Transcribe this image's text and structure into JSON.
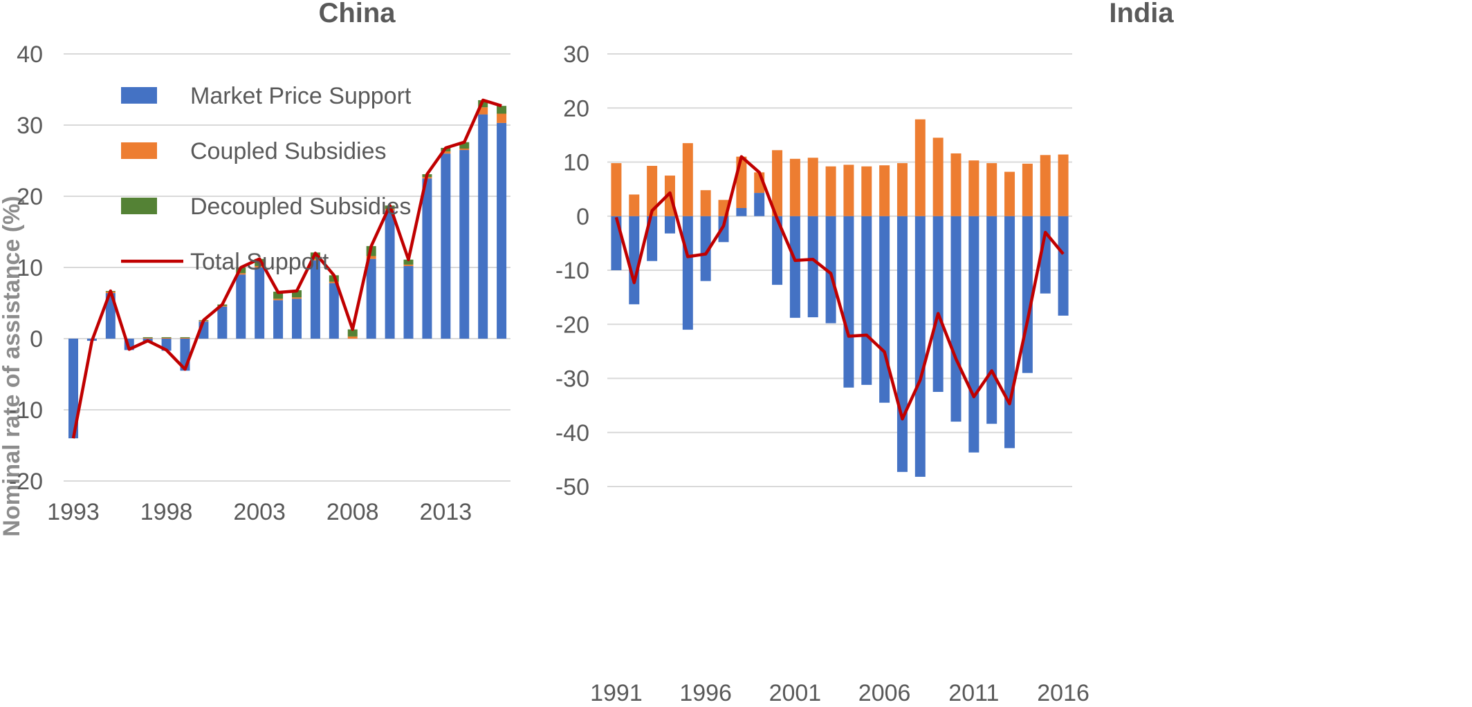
{
  "colors": {
    "market": "#4472C4",
    "coupled": "#ED7D31",
    "decoupled": "#548235",
    "total": "#C00000"
  },
  "legend": [
    {
      "key": "market",
      "label": "Market Price Support",
      "kind": "box"
    },
    {
      "key": "coupled",
      "label": "Coupled Subsidies",
      "kind": "box"
    },
    {
      "key": "decoupled",
      "label": "Decoupled Subsidies",
      "kind": "box"
    },
    {
      "key": "total",
      "label": "Total Support",
      "kind": "line"
    }
  ],
  "chart_data": [
    {
      "type": "bar",
      "stacked": true,
      "title": "China",
      "ylabel": "Nominal rate of assistance (%)",
      "ylim": [
        -20,
        40
      ],
      "yticks": [
        -20,
        -10,
        0,
        10,
        20,
        30,
        40
      ],
      "grid": true,
      "legend_position": "top-left",
      "x": [
        1993,
        1994,
        1995,
        1996,
        1997,
        1998,
        1999,
        2000,
        2001,
        2002,
        2003,
        2004,
        2005,
        2006,
        2007,
        2008,
        2009,
        2010,
        2011,
        2012,
        2013,
        2014,
        2015,
        2016
      ],
      "xtick_labels": [
        "1993",
        "1998",
        "2003",
        "2008",
        "2013"
      ],
      "series": [
        {
          "name": "Market Price Support",
          "key": "market",
          "values": [
            -14.0,
            -0.3,
            6.4,
            -1.6,
            -0.4,
            -1.7,
            -4.5,
            2.4,
            4.5,
            9.0,
            10.0,
            5.4,
            5.6,
            11.0,
            7.8,
            0.0,
            11.2,
            18.0,
            10.2,
            22.5,
            26.0,
            26.5,
            31.5,
            30.3
          ]
        },
        {
          "name": "Coupled Subsidies",
          "key": "coupled",
          "values": [
            0.0,
            0.0,
            0.2,
            0.0,
            0.1,
            0.1,
            0.1,
            0.1,
            0.1,
            0.2,
            0.2,
            0.2,
            0.2,
            0.2,
            0.2,
            0.3,
            0.4,
            0.2,
            0.2,
            0.2,
            0.3,
            0.2,
            1.0,
            1.3
          ]
        },
        {
          "name": "Decoupled Subsidies",
          "key": "decoupled",
          "values": [
            0.0,
            0.0,
            0.1,
            0.0,
            0.1,
            0.1,
            0.1,
            0.1,
            0.2,
            0.8,
            1.0,
            1.0,
            1.0,
            0.9,
            0.9,
            1.0,
            1.4,
            0.5,
            0.7,
            0.4,
            0.5,
            0.9,
            1.0,
            1.1
          ]
        }
      ],
      "total": {
        "name": "Total Support",
        "key": "total",
        "values": [
          -14.0,
          -0.3,
          6.7,
          -1.5,
          -0.3,
          -1.6,
          -4.3,
          2.6,
          4.8,
          10.0,
          11.2,
          6.5,
          6.7,
          12.0,
          8.9,
          1.3,
          13.0,
          18.7,
          11.1,
          23.1,
          26.8,
          27.6,
          33.5,
          32.7
        ]
      }
    },
    {
      "type": "bar",
      "stacked": true,
      "title": "India",
      "ylabel": "",
      "ylim": [
        -50,
        30
      ],
      "yticks": [
        -50,
        -40,
        -30,
        -20,
        -10,
        0,
        10,
        20,
        30
      ],
      "grid": true,
      "x": [
        1991,
        1992,
        1993,
        1994,
        1995,
        1996,
        1997,
        1998,
        1999,
        2000,
        2001,
        2002,
        2003,
        2004,
        2005,
        2006,
        2007,
        2008,
        2009,
        2010,
        2011,
        2012,
        2013,
        2014,
        2015,
        2016
      ],
      "xtick_labels": [
        "1991",
        "1996",
        "2001",
        "2006",
        "2011",
        "2016"
      ],
      "series": [
        {
          "name": "Market Price Support",
          "key": "market",
          "values": [
            -10.0,
            -16.3,
            -8.3,
            -3.2,
            -21.0,
            -12.0,
            -4.8,
            1.5,
            4.3,
            -12.7,
            -18.8,
            -18.7,
            -19.8,
            -31.7,
            -31.2,
            -34.5,
            -47.3,
            -48.2,
            -32.5,
            -38.0,
            -43.7,
            -38.4,
            -42.9,
            -29.0,
            -14.3,
            -18.4
          ]
        },
        {
          "name": "Coupled Subsidies",
          "key": "coupled",
          "values": [
            9.8,
            4.0,
            9.3,
            7.5,
            13.5,
            4.8,
            3.0,
            9.5,
            3.8,
            12.2,
            10.6,
            10.8,
            9.2,
            9.5,
            9.2,
            9.4,
            9.8,
            17.9,
            14.5,
            11.6,
            10.3,
            9.8,
            8.2,
            9.7,
            11.3,
            11.4
          ]
        }
      ],
      "total": {
        "name": "Total Support",
        "key": "total",
        "values": [
          -0.2,
          -12.3,
          1.0,
          4.3,
          -7.5,
          -7.0,
          -1.8,
          11.0,
          8.1,
          -0.5,
          -8.2,
          -8.0,
          -10.6,
          -22.2,
          -22.0,
          -25.1,
          -37.5,
          -30.3,
          -18.0,
          -26.4,
          -33.4,
          -28.6,
          -34.7,
          -19.3,
          -3.0,
          -7.0
        ]
      }
    }
  ]
}
